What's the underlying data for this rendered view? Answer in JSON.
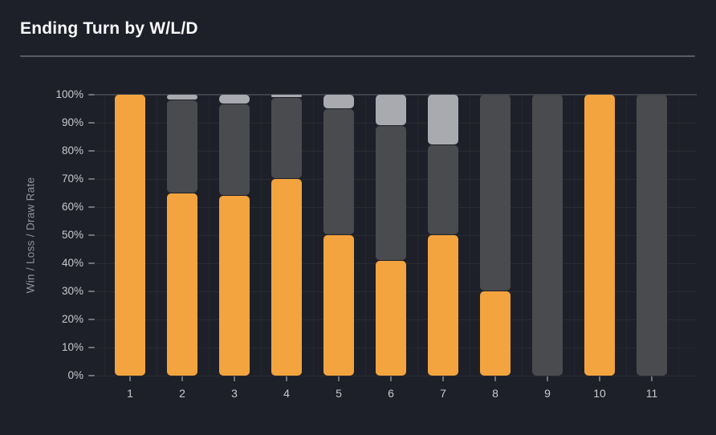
{
  "header": {
    "title": "Ending Turn by W/L/D"
  },
  "theme": {
    "background": "#1E2029",
    "title_color": "#FAFAFB",
    "divider_color": "#565B66",
    "axis_label_color": "#C7C9CE",
    "axis_title_color": "#8F929B",
    "gridline_color": "rgba(255,255,255,0.05)",
    "zero_line_color": "#3E424C"
  },
  "chart_data": {
    "type": "bar",
    "stacked": true,
    "orientation": "vertical",
    "title": "Ending Turn by W/L/D",
    "xlabel": "",
    "ylabel": "Win / Loss / Draw Rate",
    "categories": [
      "1",
      "2",
      "3",
      "4",
      "5",
      "6",
      "7",
      "8",
      "9",
      "10",
      "11"
    ],
    "series": [
      {
        "name": "Win",
        "color": "#F3A43E",
        "values": [
          100,
          65,
          64,
          70,
          50,
          41,
          50,
          30,
          0,
          100,
          0
        ]
      },
      {
        "name": "Loss",
        "color": "#4A4B4E",
        "values": [
          0,
          33,
          32.5,
          29,
          45,
          48,
          32,
          70,
          100,
          0,
          100
        ]
      },
      {
        "name": "Draw",
        "color": "#A8AAAF",
        "values": [
          0,
          2,
          3.5,
          1,
          5,
          11,
          18,
          0,
          0,
          0,
          0
        ]
      }
    ],
    "ylim": [
      0,
      100
    ],
    "yticks": [
      "0%",
      "10%",
      "20%",
      "30%",
      "40%",
      "50%",
      "60%",
      "70%",
      "80%",
      "90%",
      "100%"
    ],
    "unit": "%",
    "grid": true,
    "legend": false
  }
}
